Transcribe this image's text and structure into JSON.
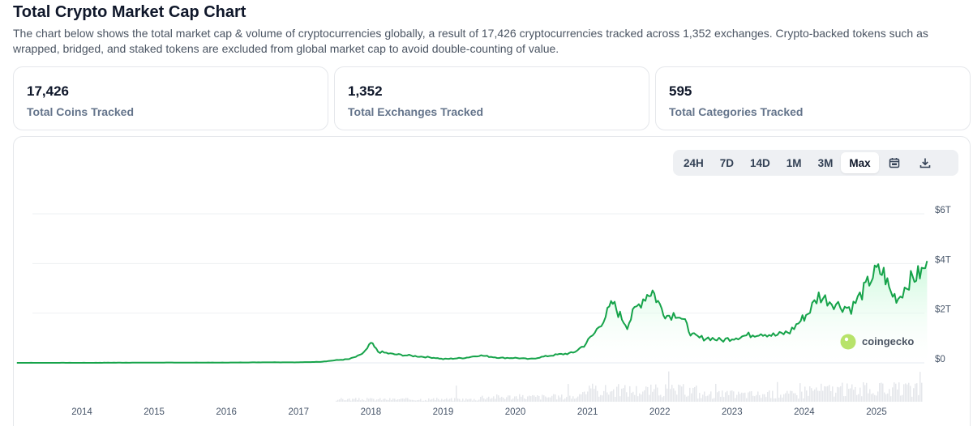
{
  "header": {
    "title": "Total Crypto Market Cap Chart",
    "description": "The chart below shows the total market cap & volume of cryptocurrencies globally, a result of 17,426 cryptocurrencies tracked across 1,352 exchanges. Crypto-backed tokens such as wrapped, bridged, and staked tokens are excluded from global market cap to avoid double-counting of value."
  },
  "stats": [
    {
      "value": "17,426",
      "label": "Total Coins Tracked"
    },
    {
      "value": "1,352",
      "label": "Total Exchanges Tracked"
    },
    {
      "value": "595",
      "label": "Total Categories Tracked"
    }
  ],
  "toolbar": {
    "ranges": [
      "24H",
      "7D",
      "14D",
      "1M",
      "3M",
      "Max"
    ],
    "active_range": "Max",
    "icons": [
      "calendar-icon",
      "download-icon"
    ]
  },
  "watermark": {
    "text": "coingecko"
  },
  "colors": {
    "line": "#16a34a",
    "area_top": "#bbf7d0",
    "volume": "#e5e7eb",
    "grid": "#eef0f3",
    "active_bg": "#ffffff"
  },
  "chart_data": {
    "type": "area",
    "title": "",
    "xlabel": "",
    "ylabel": "",
    "y_ticks": [
      "$0",
      "$2T",
      "$4T",
      "$6T"
    ],
    "y_tick_values": [
      0,
      2,
      4,
      6
    ],
    "ylim": [
      0,
      6
    ],
    "y_unit": "trillion USD",
    "x_ticks": [
      "2014",
      "2015",
      "2016",
      "2017",
      "2018",
      "2019",
      "2020",
      "2021",
      "2022",
      "2023",
      "2024",
      "2025"
    ],
    "xlim": [
      2013.1,
      2025.7
    ],
    "grid": true,
    "legend": "none",
    "series": [
      {
        "x": [
          2013.1,
          2014.0,
          2015.0,
          2016.0,
          2016.5,
          2017.0,
          2017.3,
          2017.5,
          2017.7,
          2017.85,
          2017.95,
          2018.0,
          2018.1,
          2018.3,
          2018.5,
          2018.7,
          2018.9,
          2019.0,
          2019.3,
          2019.5,
          2019.8,
          2020.0,
          2020.2,
          2020.5,
          2020.8,
          2020.95,
          2021.1,
          2021.25,
          2021.35,
          2021.45,
          2021.55,
          2021.65,
          2021.8,
          2021.9,
          2022.0,
          2022.1,
          2022.25,
          2022.35,
          2022.45,
          2022.55,
          2022.7,
          2022.85,
          2023.0,
          2023.2,
          2023.4,
          2023.6,
          2023.8,
          2023.95,
          2024.05,
          2024.2,
          2024.35,
          2024.5,
          2024.65,
          2024.8,
          2024.9,
          2025.0,
          2025.1,
          2025.2,
          2025.3,
          2025.45,
          2025.55,
          2025.65,
          2025.7
        ],
        "y": [
          0.0,
          0.0,
          0.01,
          0.01,
          0.02,
          0.02,
          0.04,
          0.1,
          0.15,
          0.3,
          0.55,
          0.8,
          0.45,
          0.35,
          0.3,
          0.25,
          0.2,
          0.15,
          0.2,
          0.3,
          0.2,
          0.2,
          0.15,
          0.3,
          0.4,
          0.7,
          1.2,
          1.9,
          2.4,
          1.9,
          1.5,
          2.1,
          2.7,
          2.9,
          2.3,
          1.9,
          2.0,
          1.6,
          1.1,
          1.0,
          1.0,
          0.9,
          1.0,
          1.1,
          1.2,
          1.1,
          1.25,
          1.7,
          2.0,
          2.7,
          2.5,
          2.3,
          2.2,
          2.8,
          3.3,
          3.7,
          3.6,
          2.8,
          2.6,
          3.3,
          3.5,
          3.7,
          4.1
        ]
      }
    ]
  }
}
